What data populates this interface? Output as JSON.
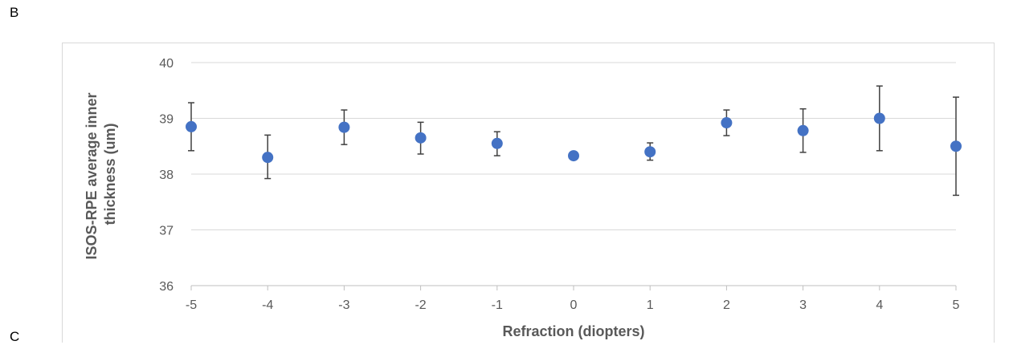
{
  "panel_labels": {
    "top": "B",
    "bottom": "C"
  },
  "chart_data": {
    "type": "scatter",
    "title": "",
    "xlabel": "Refraction (diopters)",
    "ylabel_lines": [
      "ISOS-RPE average inner",
      "thickness (um)"
    ],
    "x": [
      -5,
      -4,
      -3,
      -2,
      -1,
      0,
      1,
      2,
      3,
      4,
      5
    ],
    "y": [
      38.85,
      38.3,
      38.84,
      38.65,
      38.55,
      38.33,
      38.4,
      38.92,
      38.78,
      39.0,
      38.5
    ],
    "error_upper": [
      39.28,
      38.7,
      39.15,
      38.93,
      38.76,
      38.36,
      38.56,
      39.15,
      39.17,
      39.58,
      39.38
    ],
    "error_lower": [
      38.42,
      37.92,
      38.53,
      38.36,
      38.33,
      38.3,
      38.25,
      38.69,
      38.39,
      38.42,
      37.62
    ],
    "xlim": [
      -5,
      5
    ],
    "ylim": [
      36,
      40
    ],
    "xticks": [
      "-5",
      "-4",
      "-3",
      "-2",
      "-1",
      "0",
      "1",
      "2",
      "3",
      "4",
      "5"
    ],
    "yticks": [
      "36",
      "37",
      "38",
      "39",
      "40"
    ],
    "grid": true,
    "marker_color": "#4472c4",
    "errorbar_color": "#404040",
    "gridline_color": "#d9d9d9"
  }
}
